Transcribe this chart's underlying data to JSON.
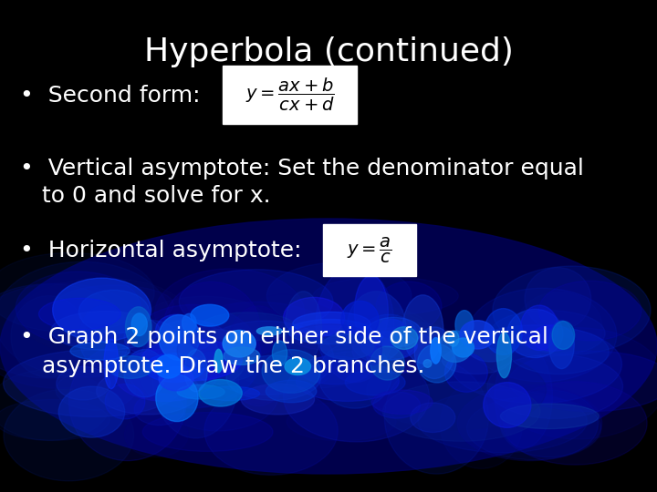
{
  "title": "Hyperbola (continued)",
  "title_fontsize": 26,
  "title_color": "#ffffff",
  "background_color": "#000000",
  "bullet_color": "#ffffff",
  "bullet_fontsize": 18,
  "formula1_latex": "$y = \\dfrac{ax+b}{cx+d}$",
  "formula2_latex": "$y = \\dfrac{a}{c}$",
  "flame_seed": 42
}
